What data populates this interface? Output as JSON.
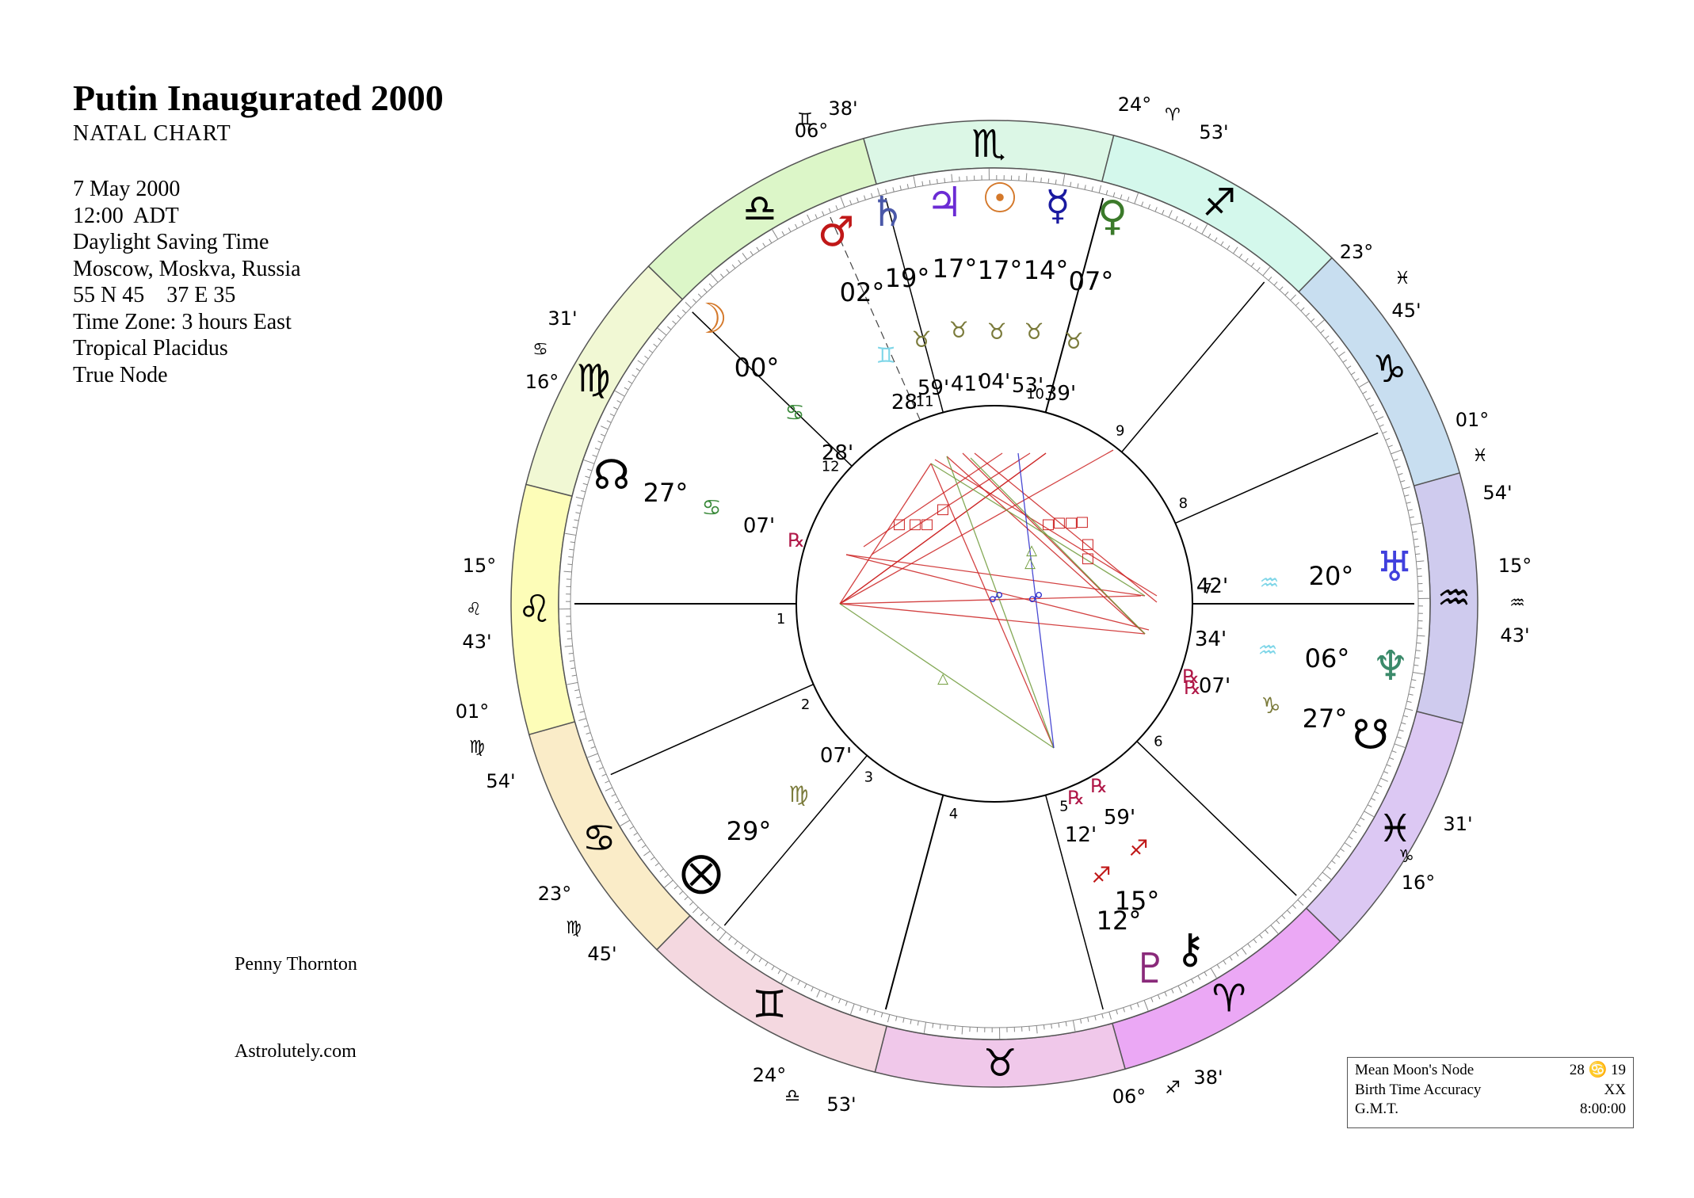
{
  "header": {
    "title": "Putin Inaugurated 2000",
    "subtitle": "NATAL CHART",
    "details": [
      "7 May 2000",
      "12:00  ADT",
      "Daylight Saving Time",
      "Moscow, Moskva, Russia",
      "55 N 45    37 E 35",
      "Time Zone: 3 hours East",
      "Tropical Placidus",
      "True Node"
    ]
  },
  "credits": {
    "author": "Penny Thornton",
    "site": "Astrolutely.com"
  },
  "infobox": [
    {
      "label": "Mean Moon's Node",
      "value": "28 ♋ 19"
    },
    {
      "label": "Birth Time Accuracy",
      "value": "XX"
    },
    {
      "label": "G.M.T.",
      "value": "8:00:00"
    }
  ],
  "colors": {
    "aries": "#eba8f5",
    "taurus": "#f0c8ea",
    "gemini": "#f4d8e0",
    "cancer": "#faecc8",
    "leo": "#fdfdb8",
    "virgo": "#f1f8d4",
    "libra": "#dcf6c8",
    "scorpio": "#dcf7e6",
    "sagittarius": "#d4f8ec",
    "capricorn": "#c8def0",
    "aquarius": "#cfcbee",
    "pisces": "#dcc8f3",
    "square": "#cc2222",
    "trine": "#6f9b3a",
    "opposition": "#2b2bcc"
  },
  "chart_data": {
    "type": "natal_chart_wheel",
    "zodiac_ring": [
      "aries",
      "taurus",
      "gemini",
      "cancer",
      "leo",
      "virgo",
      "libra",
      "scorpio",
      "sagittarius",
      "capricorn",
      "aquarius",
      "pisces"
    ],
    "house_cusps": [
      {
        "house": 1,
        "sign": "♌",
        "deg": "15°",
        "min": "43'"
      },
      {
        "house": 2,
        "sign": "♍",
        "deg": "01°",
        "min": "54'"
      },
      {
        "house": 3,
        "sign": "♍",
        "deg": "23°",
        "min": "45'"
      },
      {
        "house": 4,
        "sign": "♎",
        "deg": "24°",
        "min": "53'"
      },
      {
        "house": 5,
        "sign": "♐",
        "deg": "06°",
        "min": "38'"
      },
      {
        "house": 6,
        "sign": "♑",
        "deg": "16°",
        "min": "31'"
      },
      {
        "house": 7,
        "sign": "♒",
        "deg": "15°",
        "min": "43'"
      },
      {
        "house": 8,
        "sign": "♓",
        "deg": "01°",
        "min": "54'"
      },
      {
        "house": 9,
        "sign": "♓",
        "deg": "23°",
        "min": "45'"
      },
      {
        "house": 10,
        "sign": "♈",
        "deg": "24°",
        "min": "53'"
      },
      {
        "house": 11,
        "sign": "♊",
        "deg": "06°",
        "min": "38'"
      },
      {
        "house": 12,
        "sign": "♋",
        "deg": "16°",
        "min": "31'"
      }
    ],
    "planets": [
      {
        "name": "Sun",
        "glyph": "☉",
        "deg": "17°",
        "sign": "♉",
        "min": "04'",
        "retro": ""
      },
      {
        "name": "Moon",
        "glyph": "☽",
        "deg": "00°",
        "sign": "♋",
        "min": "28'",
        "retro": ""
      },
      {
        "name": "Mercury",
        "glyph": "☿",
        "deg": "14°",
        "sign": "♉",
        "min": "53'",
        "retro": ""
      },
      {
        "name": "Venus",
        "glyph": "♀",
        "deg": "07°",
        "sign": "♉",
        "min": "39'",
        "retro": ""
      },
      {
        "name": "Mars",
        "glyph": "♂",
        "deg": "02°",
        "sign": "♊",
        "min": "28'",
        "retro": ""
      },
      {
        "name": "Jupiter",
        "glyph": "♃",
        "deg": "17°",
        "sign": "♉",
        "min": "41'",
        "retro": ""
      },
      {
        "name": "Saturn",
        "glyph": "♄",
        "deg": "19°",
        "sign": "♉",
        "min": "59'",
        "retro": ""
      },
      {
        "name": "Uranus",
        "glyph": "♅",
        "deg": "20°",
        "sign": "♒",
        "min": "42'",
        "retro": ""
      },
      {
        "name": "Neptune",
        "glyph": "♆",
        "deg": "06°",
        "sign": "♒",
        "min": "34'",
        "retro": "℞"
      },
      {
        "name": "Pluto",
        "glyph": "♇",
        "deg": "12°",
        "sign": "♐",
        "min": "12'",
        "retro": "℞"
      },
      {
        "name": "Chiron",
        "glyph": "⚷",
        "deg": "15°",
        "sign": "♐",
        "min": "59'",
        "retro": "℞"
      },
      {
        "name": "North Node",
        "glyph": "☊",
        "deg": "27°",
        "sign": "♋",
        "min": "07'",
        "retro": "℞"
      },
      {
        "name": "South Node",
        "glyph": "☋",
        "deg": "27°",
        "sign": "♑",
        "min": "07'",
        "retro": "℞"
      },
      {
        "name": "Fortune",
        "glyph": "⨂",
        "deg": "29°",
        "sign": "♍",
        "min": "07'",
        "retro": ""
      }
    ],
    "aspect_markers": {
      "square": "□",
      "trine": "△",
      "opposition": "☍"
    }
  }
}
